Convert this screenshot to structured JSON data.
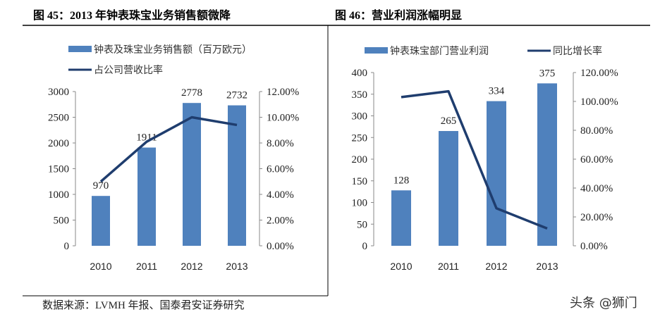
{
  "chart_data": [
    {
      "type": "bar",
      "title": "图 45：2013 年钟表珠宝业务销售额微降",
      "categories": [
        "2010",
        "2011",
        "2012",
        "2013"
      ],
      "series": [
        {
          "name": "钟表及珠宝业务销售额（百万欧元）",
          "type": "bar",
          "axis": "left",
          "values": [
            970,
            1911,
            2778,
            2732
          ],
          "color": "#4F81BD"
        },
        {
          "name": "占公司营收比率",
          "type": "line",
          "axis": "right",
          "values": [
            5.0,
            8.1,
            10.0,
            9.4
          ],
          "color": "#1F3D6E"
        }
      ],
      "ylim": [
        0,
        3000
      ],
      "yticks": [
        "0",
        "500",
        "1000",
        "1500",
        "2000",
        "2500",
        "3000"
      ],
      "y2lim": [
        0,
        12
      ],
      "y2ticks": [
        "0.00%",
        "2.00%",
        "4.00%",
        "6.00%",
        "8.00%",
        "10.00%",
        "12.00%"
      ],
      "data_labels": [
        "970",
        "1911",
        "2778",
        "2732"
      ],
      "legend": "top",
      "grid": false
    },
    {
      "type": "bar",
      "title": "图 46：营业利润涨幅明显",
      "categories": [
        "2010",
        "2011",
        "2012",
        "2013"
      ],
      "series": [
        {
          "name": "钟表珠宝部门营业利润",
          "type": "bar",
          "axis": "left",
          "values": [
            128,
            265,
            334,
            375
          ],
          "color": "#4F81BD"
        },
        {
          "name": "同比增长率",
          "type": "line",
          "axis": "right",
          "values": [
            103,
            107,
            26,
            12
          ],
          "color": "#1F3D6E"
        }
      ],
      "ylim": [
        0,
        400
      ],
      "yticks": [
        "0",
        "50",
        "100",
        "150",
        "200",
        "250",
        "300",
        "350",
        "400"
      ],
      "y2lim": [
        0,
        120
      ],
      "y2ticks": [
        "0.00%",
        "20.00%",
        "40.00%",
        "60.00%",
        "80.00%",
        "100.00%",
        "120.00%"
      ],
      "data_labels": [
        "128",
        "265",
        "334",
        "375"
      ],
      "legend": "top",
      "grid": false
    }
  ],
  "footer": {
    "source": "数据来源：LVMH 年报、国泰君安证券研究",
    "watermark": "头条 @狮门"
  }
}
